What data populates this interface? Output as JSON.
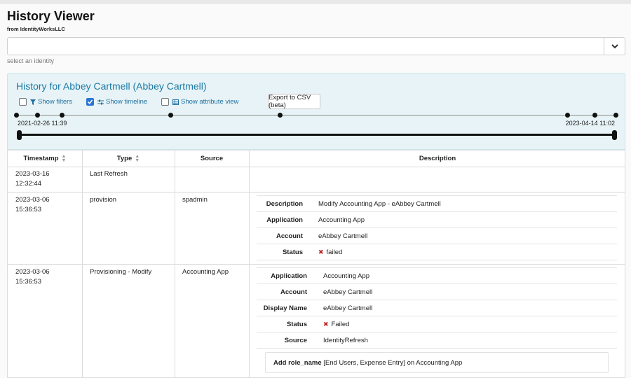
{
  "app": {
    "title": "History Viewer",
    "subtitle": "from IdentityWorksLLC"
  },
  "identity_select": {
    "value": "",
    "hint": "select an identity",
    "dropdown_icon": "chevron-down-icon"
  },
  "panel": {
    "title": "History for Abbey Cartmell (Abbey Cartmell)",
    "options": [
      {
        "label": "Show filters",
        "checked": false,
        "icon": "filter-icon"
      },
      {
        "label": "Show timeline",
        "checked": true,
        "icon": "sliders-icon"
      },
      {
        "label": "Show attribute view",
        "checked": false,
        "icon": "table-icon"
      }
    ],
    "csv_button": "Export to CSV (beta)",
    "timeline": {
      "start_label": "2021-02-26 11:39",
      "end_label": "2023-04-14 11:02"
    }
  },
  "table": {
    "headers": {
      "timestamp": "Timestamp",
      "type": "Type",
      "source": "Source",
      "description": "Description"
    },
    "rows": [
      {
        "timestamp": "2023-03-16 12:32:44",
        "type": "Last Refresh",
        "source": ""
      },
      {
        "timestamp": "2023-03-06 15:36:53",
        "type": "provision",
        "source": "spadmin",
        "details": [
          {
            "label": "Description",
            "value": "Modify Accounting App - eAbbey Cartmell"
          },
          {
            "label": "Application",
            "value": "Accounting App"
          },
          {
            "label": "Account",
            "value": "eAbbey Cartmell"
          },
          {
            "label": "Status",
            "value": "failed"
          }
        ]
      },
      {
        "timestamp": "2023-03-06 15:36:53",
        "type": "Provisioning - Modify",
        "source": "Accounting App",
        "details": [
          {
            "label": "Application",
            "value": "Accounting App"
          },
          {
            "label": "Account",
            "value": "eAbbey Cartmell"
          },
          {
            "label": "Display Name",
            "value": "eAbbey Cartmell"
          },
          {
            "label": "Status",
            "value": "Failed"
          },
          {
            "label": "Source",
            "value": "IdentityRefresh"
          }
        ],
        "note": {
          "bold": "Add role_name",
          "rest": " [End Users, Expense Entry] on Accounting App"
        }
      }
    ]
  },
  "colors": {
    "accent": "#1a7aa6",
    "panel_bg": "#e7f3f6",
    "failed": "#b22222"
  }
}
